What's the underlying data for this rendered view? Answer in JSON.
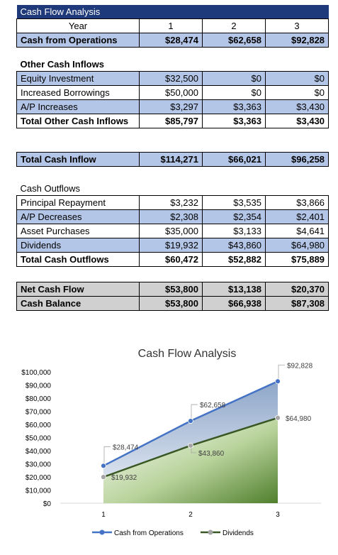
{
  "sheet": {
    "title": "Cash Flow Analysis",
    "year_label": "Year",
    "years": [
      "1",
      "2",
      "3"
    ],
    "ops": {
      "label": "Cash from Operations",
      "values": [
        "$28,474",
        "$62,658",
        "$92,828"
      ]
    },
    "other_inflows": {
      "heading": "Other Cash Inflows",
      "rows": [
        {
          "label": "Equity Investment",
          "values": [
            "$32,500",
            "$0",
            "$0"
          ]
        },
        {
          "label": "Increased Borrowings",
          "values": [
            "$50,000",
            "$0",
            "$0"
          ]
        },
        {
          "label": "A/P Increases",
          "values": [
            "$3,297",
            "$3,363",
            "$3,430"
          ]
        }
      ],
      "total": {
        "label": "Total Other Cash Inflows",
        "values": [
          "$85,797",
          "$3,363",
          "$3,430"
        ]
      }
    },
    "total_inflow": {
      "label": "Total Cash Inflow",
      "values": [
        "$114,271",
        "$66,021",
        "$96,258"
      ]
    },
    "outflows": {
      "heading": "Cash Outflows",
      "rows": [
        {
          "label": "Principal Repayment",
          "values": [
            "$3,232",
            "$3,535",
            "$3,866"
          ]
        },
        {
          "label": "A/P Decreases",
          "values": [
            "$2,308",
            "$2,354",
            "$2,401"
          ]
        },
        {
          "label": "Asset Purchases",
          "values": [
            "$35,000",
            "$3,133",
            "$4,641"
          ]
        },
        {
          "label": "Dividends",
          "values": [
            "$19,932",
            "$43,860",
            "$64,980"
          ]
        }
      ],
      "total": {
        "label": "Total Cash Outflows",
        "values": [
          "$60,472",
          "$52,882",
          "$75,889"
        ]
      }
    },
    "net": {
      "label": "Net Cash Flow",
      "values": [
        "$53,800",
        "$13,138",
        "$20,370"
      ]
    },
    "balance": {
      "label": "Cash Balance",
      "values": [
        "$53,800",
        "$66,938",
        "$87,308"
      ]
    }
  },
  "chart_data": {
    "type": "area",
    "title": "Cash Flow Analysis",
    "categories": [
      "1",
      "2",
      "3"
    ],
    "ylim": [
      0,
      100000
    ],
    "yticks": [
      "$0",
      "$10,000",
      "$20,000",
      "$30,000",
      "$40,000",
      "$50,000",
      "$60,000",
      "$70,000",
      "$80,000",
      "$90,000",
      "$100,000"
    ],
    "series": [
      {
        "name": "Cash from Operations",
        "values": [
          28474,
          62658,
          92828
        ],
        "labels": [
          "$28,474",
          "$62,658",
          "$92,828"
        ],
        "color": "#4472c4"
      },
      {
        "name": "Dividends",
        "values": [
          19932,
          43860,
          64980
        ],
        "labels": [
          "$19,932",
          "$43,860",
          "$64,980"
        ],
        "color": "#385723"
      }
    ],
    "legend_position": "bottom",
    "grid": false
  }
}
